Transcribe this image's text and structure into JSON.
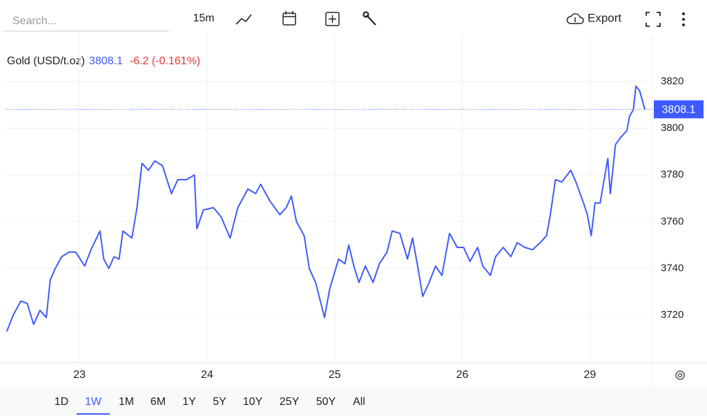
{
  "toolbar": {
    "search_placeholder": "Search...",
    "interval": "15m",
    "export": "Export"
  },
  "chart_data": {
    "type": "line",
    "change_label": "-6.2 (-0.161%)",
    "x": [
      -0.57,
      -0.52,
      -0.46,
      -0.41,
      -0.36,
      -0.31,
      -0.26,
      -0.23,
      -0.19,
      -0.14,
      -0.08,
      -0.03,
      0.04,
      0.09,
      0.16,
      0.19,
      0.23,
      0.27,
      0.31,
      0.34,
      0.41,
      0.45,
      0.49,
      0.54,
      0.59,
      0.65,
      0.72,
      0.77,
      0.84,
      0.9,
      0.92,
      0.97,
      1.05,
      1.11,
      1.18,
      1.24,
      1.32,
      1.38,
      1.42,
      1.49,
      1.57,
      1.62,
      1.66,
      1.7,
      1.76,
      1.8,
      1.85,
      1.92,
      1.96,
      2.03,
      2.08,
      2.11,
      2.15,
      2.19,
      2.24,
      2.3,
      2.35,
      2.41,
      2.45,
      2.51,
      2.57,
      2.61,
      2.65,
      2.69,
      2.74,
      2.79,
      2.84,
      2.9,
      2.96,
      3.01,
      3.06,
      3.12,
      3.16,
      3.22,
      3.26,
      3.32,
      3.38,
      3.43,
      3.49,
      3.55,
      3.61,
      3.66,
      3.69,
      3.73,
      3.78,
      3.85,
      3.89,
      3.95,
      3.98,
      4.01,
      4.04,
      4.08,
      4.14,
      4.16,
      4.2,
      4.24,
      4.29,
      4.31,
      4.34,
      4.36,
      4.39,
      4.43
    ],
    "series": [
      {
        "name": "Gold (USD/t.oz)",
        "color": "#3d5afe",
        "values": [
          3713,
          3720,
          3726,
          3725,
          3716,
          3722,
          3719,
          3735,
          3740,
          3745,
          3747,
          3747,
          3741,
          3748,
          3756,
          3744,
          3740,
          3745,
          3744,
          3756,
          3753,
          3766,
          3785,
          3782,
          3786,
          3784,
          3772,
          3778,
          3778,
          3780,
          3757,
          3765,
          3766,
          3762,
          3753,
          3766,
          3774,
          3772,
          3776,
          3769,
          3763,
          3766,
          3771,
          3760,
          3754,
          3740,
          3734,
          3719,
          3731,
          3744,
          3742,
          3750,
          3741,
          3734,
          3741,
          3734,
          3742,
          3747,
          3756,
          3755,
          3744,
          3753,
          3741,
          3728,
          3734,
          3741,
          3737,
          3755,
          3749,
          3749,
          3743,
          3749,
          3741,
          3737,
          3745,
          3749,
          3745,
          3751,
          3749,
          3748,
          3751,
          3754,
          3763,
          3778,
          3777,
          3782,
          3777,
          3768,
          3763,
          3754,
          3768,
          3768,
          3787,
          3772,
          3793,
          3796,
          3799,
          3805,
          3808,
          3818,
          3816,
          3808.1
        ]
      }
    ],
    "xlim": [
      -0.58,
      4.49
    ],
    "xticks": [
      {
        "value": 0,
        "label": "23"
      },
      {
        "value": 1,
        "label": "24"
      },
      {
        "value": 2,
        "label": "25"
      },
      {
        "value": 3,
        "label": "26"
      },
      {
        "value": 4,
        "label": "29"
      }
    ],
    "ylim": [
      3700,
      3840
    ],
    "yticks": [
      3720,
      3740,
      3760,
      3780,
      3800,
      3820
    ],
    "grid": true
  },
  "range_tabs": {
    "items": [
      "1D",
      "1W",
      "1M",
      "6M",
      "1Y",
      "5Y",
      "10Y",
      "25Y",
      "50Y",
      "All"
    ],
    "active": "1W"
  }
}
